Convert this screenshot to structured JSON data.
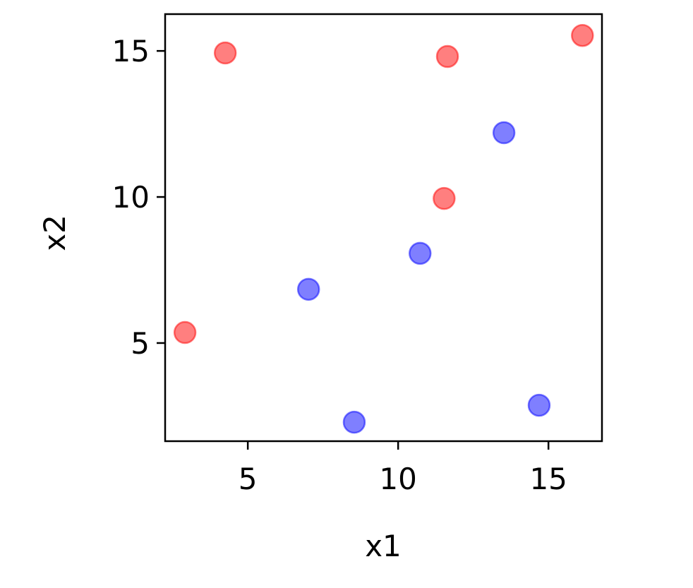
{
  "chart_data": {
    "type": "scatter",
    "title": "",
    "xlabel": "x1",
    "ylabel": "x2",
    "xlim": [
      2.25,
      16.78
    ],
    "ylim": [
      1.64,
      16.26
    ],
    "xticks": [
      5,
      10,
      15
    ],
    "yticks": [
      5,
      10,
      15
    ],
    "grid": false,
    "series": [
      {
        "color": "#ff0000",
        "points": [
          [
            4.25,
            14.93
          ],
          [
            11.64,
            14.81
          ],
          [
            16.13,
            15.53
          ],
          [
            11.53,
            9.95
          ],
          [
            2.91,
            5.36
          ]
        ]
      },
      {
        "color": "#0000ff",
        "points": [
          [
            13.52,
            12.2
          ],
          [
            10.73,
            8.07
          ],
          [
            7.02,
            6.84
          ],
          [
            8.54,
            2.29
          ],
          [
            14.69,
            2.87
          ]
        ]
      }
    ]
  }
}
